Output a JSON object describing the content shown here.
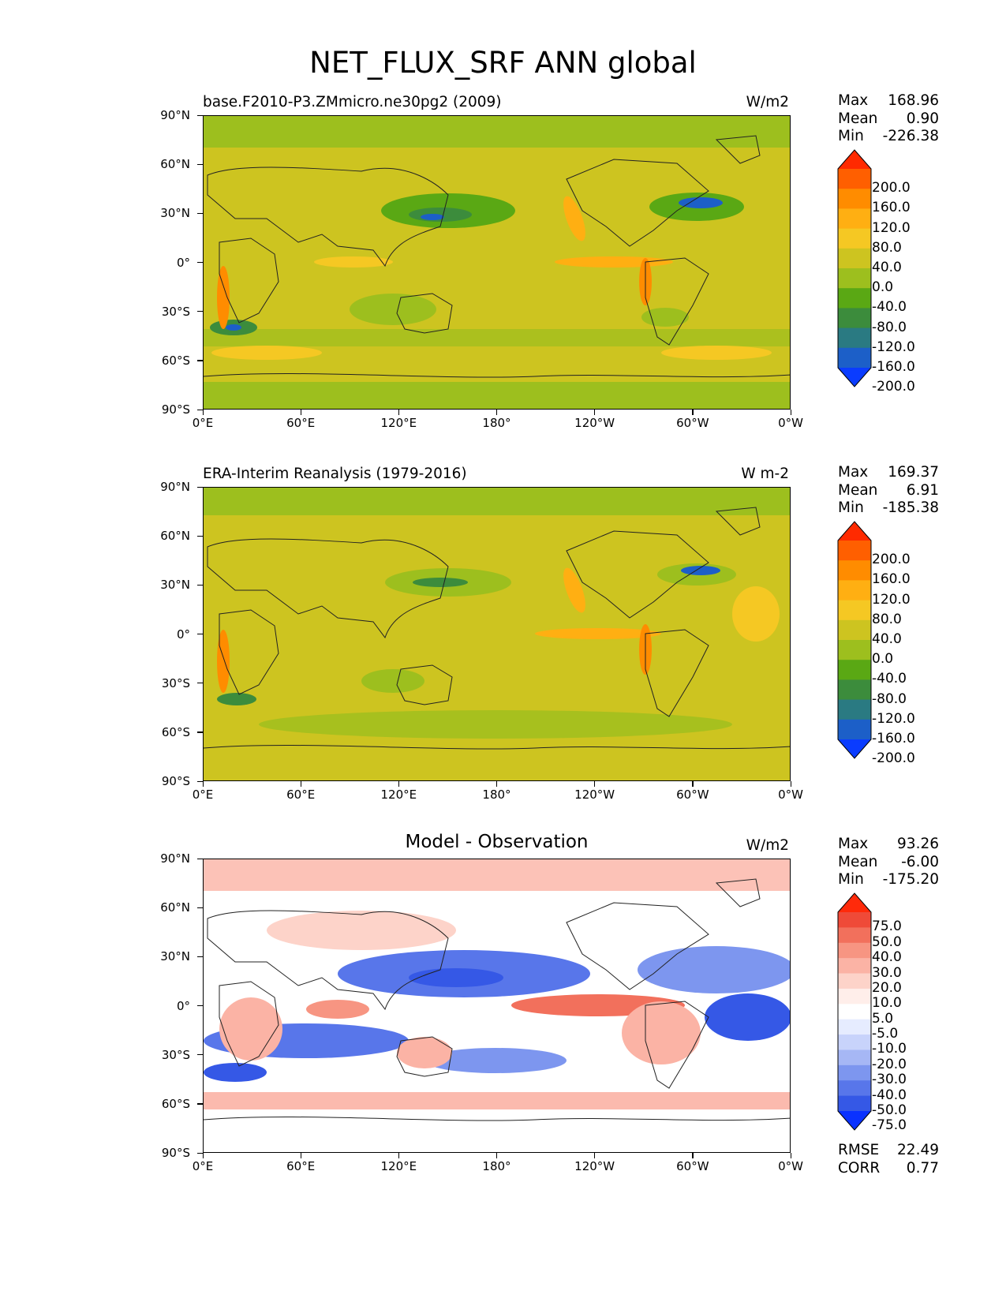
{
  "figure": {
    "title": "NET_FLUX_SRF ANN global",
    "lat_labels": [
      "90°N",
      "60°N",
      "30°N",
      "0°",
      "30°S",
      "60°S",
      "90°S"
    ],
    "lon_labels": [
      "0°E",
      "60°E",
      "120°E",
      "180°",
      "120°W",
      "60°W",
      "0°W"
    ]
  },
  "panels": [
    {
      "title": "base.F2010-P3.ZMmicro.ne30pg2 (2009)",
      "units": "W/m2",
      "stats": {
        "max_label": "Max",
        "max": "168.96",
        "mean_label": "Mean",
        "mean": "0.90",
        "min_label": "Min",
        "min": "-226.38"
      },
      "colorbar": {
        "labels": [
          "200.0",
          "160.0",
          "120.0",
          "80.0",
          "40.0",
          "0.0",
          "-40.0",
          "-80.0",
          "-120.0",
          "-160.0",
          "-200.0"
        ],
        "colors": [
          "#ff2a00",
          "#ff5f00",
          "#ff8c00",
          "#ffaf12",
          "#f5c823",
          "#cdc420",
          "#9dbf1e",
          "#5aa814",
          "#3c8c3c",
          "#2a7a82",
          "#1c5fc8",
          "#0a3cff"
        ]
      }
    },
    {
      "title": "ERA-Interim Reanalysis (1979-2016)",
      "units": "W m-2",
      "stats": {
        "max_label": "Max",
        "max": "169.37",
        "mean_label": "Mean",
        "mean": "6.91",
        "min_label": "Min",
        "min": "-185.38"
      },
      "colorbar": {
        "labels": [
          "200.0",
          "160.0",
          "120.0",
          "80.0",
          "40.0",
          "0.0",
          "-40.0",
          "-80.0",
          "-120.0",
          "-160.0",
          "-200.0"
        ],
        "colors": [
          "#ff2a00",
          "#ff5f00",
          "#ff8c00",
          "#ffaf12",
          "#f5c823",
          "#cdc420",
          "#9dbf1e",
          "#5aa814",
          "#3c8c3c",
          "#2a7a82",
          "#1c5fc8",
          "#0a3cff"
        ]
      }
    },
    {
      "title": "Model - Observation",
      "units": "W/m2",
      "stats": {
        "max_label": "Max",
        "max": "93.26",
        "mean_label": "Mean",
        "mean": "-6.00",
        "min_label": "Min",
        "min": "-175.20"
      },
      "colorbar": {
        "labels": [
          "75.0",
          "50.0",
          "40.0",
          "30.0",
          "20.0",
          "10.0",
          "5.0",
          "-5.0",
          "-10.0",
          "-20.0",
          "-30.0",
          "-40.0",
          "-50.0",
          "-75.0"
        ],
        "colors": [
          "#ff2a0a",
          "#ef4a38",
          "#f2705c",
          "#f79582",
          "#fbb3a5",
          "#fdd3c9",
          "#ffeeea",
          "#ffffff",
          "#e6ecff",
          "#c8d3fb",
          "#a6b7f5",
          "#7d96ef",
          "#5876ea",
          "#3558e6",
          "#0a32ff"
        ]
      },
      "extra": {
        "rmse_label": "RMSE",
        "rmse": "22.49",
        "corr_label": "CORR",
        "corr": "0.77"
      }
    }
  ]
}
